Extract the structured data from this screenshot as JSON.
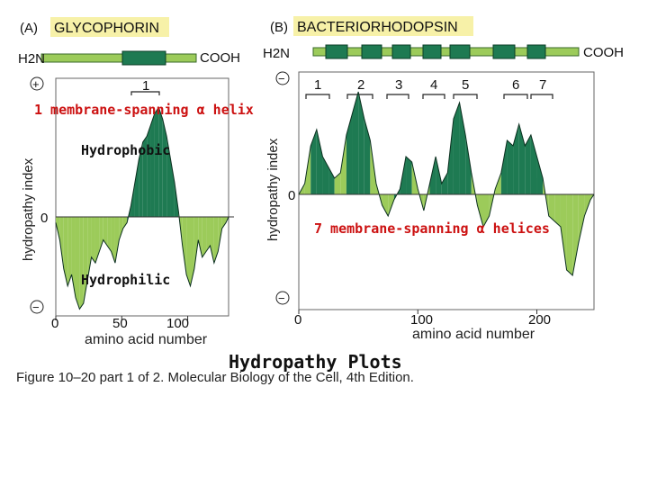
{
  "panel_a": {
    "label": "(A)",
    "title": "GLYCOPHORIN",
    "n_terminus": "H2N",
    "c_terminus": "COOH",
    "helix_number": "1",
    "plus_sign": "+",
    "minus_sign": "−",
    "zero_label": "0",
    "ylabel": "hydropathy index",
    "xlabel": "amino acid number",
    "x_ticks": [
      "0",
      "50",
      "100"
    ]
  },
  "panel_b": {
    "label": "(B)",
    "title": "BACTERIORHODOPSIN",
    "n_terminus": "H2N",
    "c_terminus": "COOH",
    "helix_numbers": [
      "1",
      "2",
      "3",
      "4",
      "5",
      "6",
      "7"
    ],
    "minus_sign_top": "−",
    "minus_sign_bottom": "−",
    "zero_label": "0",
    "ylabel": "hydropathy index",
    "xlabel": "amino acid number",
    "x_ticks": [
      "0",
      "100",
      "200"
    ]
  },
  "annotations": {
    "single_helix": "1 membrane-spanning α helix",
    "hydrophobic": "Hydrophobic",
    "seven_helices": "7 membrane-spanning α helices",
    "hydrophilic": "Hydrophilic",
    "slide_title": "Hydropathy Plots"
  },
  "caption": "Figure 10–20 part 1 of 2. Molecular Biology of the Cell, 4th Edition.",
  "colors": {
    "label_bg": "#f7f1a8",
    "bar_light": "#9ccb5a",
    "bar_dark": "#1e7a52",
    "plot_dark": "#1e7a52",
    "plot_light": "#9ccb5a",
    "annotation_red": "#cc1111"
  },
  "chart_data": [
    {
      "type": "area",
      "title": "GLYCOPHORIN",
      "xlabel": "amino acid number",
      "ylabel": "hydropathy index",
      "xlim": [
        0,
        131
      ],
      "ylim": [
        -1,
        1
      ],
      "x": [
        0,
        3,
        6,
        9,
        12,
        15,
        18,
        21,
        24,
        27,
        30,
        33,
        36,
        39,
        42,
        45,
        48,
        51,
        54,
        57,
        60,
        63,
        66,
        69,
        72,
        75,
        78,
        81,
        84,
        87,
        90,
        93,
        96,
        99,
        102,
        105,
        108,
        111,
        114,
        117,
        120,
        123,
        126,
        129,
        131
      ],
      "values": [
        -0.05,
        -0.2,
        -0.45,
        -0.6,
        -0.5,
        -0.7,
        -0.8,
        -0.75,
        -0.55,
        -0.35,
        -0.4,
        -0.3,
        -0.2,
        -0.25,
        -0.3,
        -0.4,
        -0.2,
        -0.1,
        -0.05,
        0.1,
        0.3,
        0.5,
        0.65,
        0.7,
        0.8,
        0.9,
        0.95,
        0.85,
        0.7,
        0.5,
        0.3,
        0.05,
        -0.25,
        -0.5,
        -0.6,
        -0.45,
        -0.2,
        -0.35,
        -0.3,
        -0.25,
        -0.4,
        -0.3,
        -0.1,
        -0.05,
        0.0
      ],
      "highlight_regions": [
        [
          54,
          93
        ]
      ]
    },
    {
      "type": "area",
      "title": "BACTERIORHODOPSIN",
      "xlabel": "amino acid number",
      "ylabel": "hydropathy index",
      "xlim": [
        0,
        248
      ],
      "ylim": [
        -1,
        1
      ],
      "x": [
        0,
        5,
        10,
        15,
        20,
        25,
        30,
        35,
        40,
        45,
        50,
        55,
        60,
        65,
        70,
        75,
        80,
        85,
        90,
        95,
        100,
        105,
        110,
        115,
        120,
        125,
        130,
        135,
        140,
        145,
        150,
        155,
        160,
        165,
        170,
        175,
        180,
        185,
        190,
        195,
        200,
        205,
        210,
        215,
        220,
        225,
        230,
        235,
        240,
        245,
        248
      ],
      "values": [
        0.0,
        0.1,
        0.45,
        0.6,
        0.35,
        0.25,
        0.15,
        0.2,
        0.55,
        0.75,
        0.95,
        0.7,
        0.5,
        0.1,
        -0.1,
        -0.2,
        -0.05,
        0.05,
        0.35,
        0.3,
        0.05,
        -0.15,
        0.1,
        0.35,
        0.1,
        0.2,
        0.7,
        0.85,
        0.55,
        0.2,
        -0.1,
        -0.3,
        -0.2,
        0.05,
        0.2,
        0.5,
        0.45,
        0.65,
        0.45,
        0.55,
        0.35,
        0.15,
        -0.2,
        -0.25,
        -0.3,
        -0.7,
        -0.75,
        -0.45,
        -0.2,
        -0.05,
        0.0
      ],
      "highlight_regions": [
        [
          8,
          30
        ],
        [
          38,
          62
        ],
        [
          78,
          95
        ],
        [
          108,
          124
        ],
        [
          125,
          145
        ],
        [
          170,
          188
        ],
        [
          190,
          208
        ]
      ]
    }
  ]
}
